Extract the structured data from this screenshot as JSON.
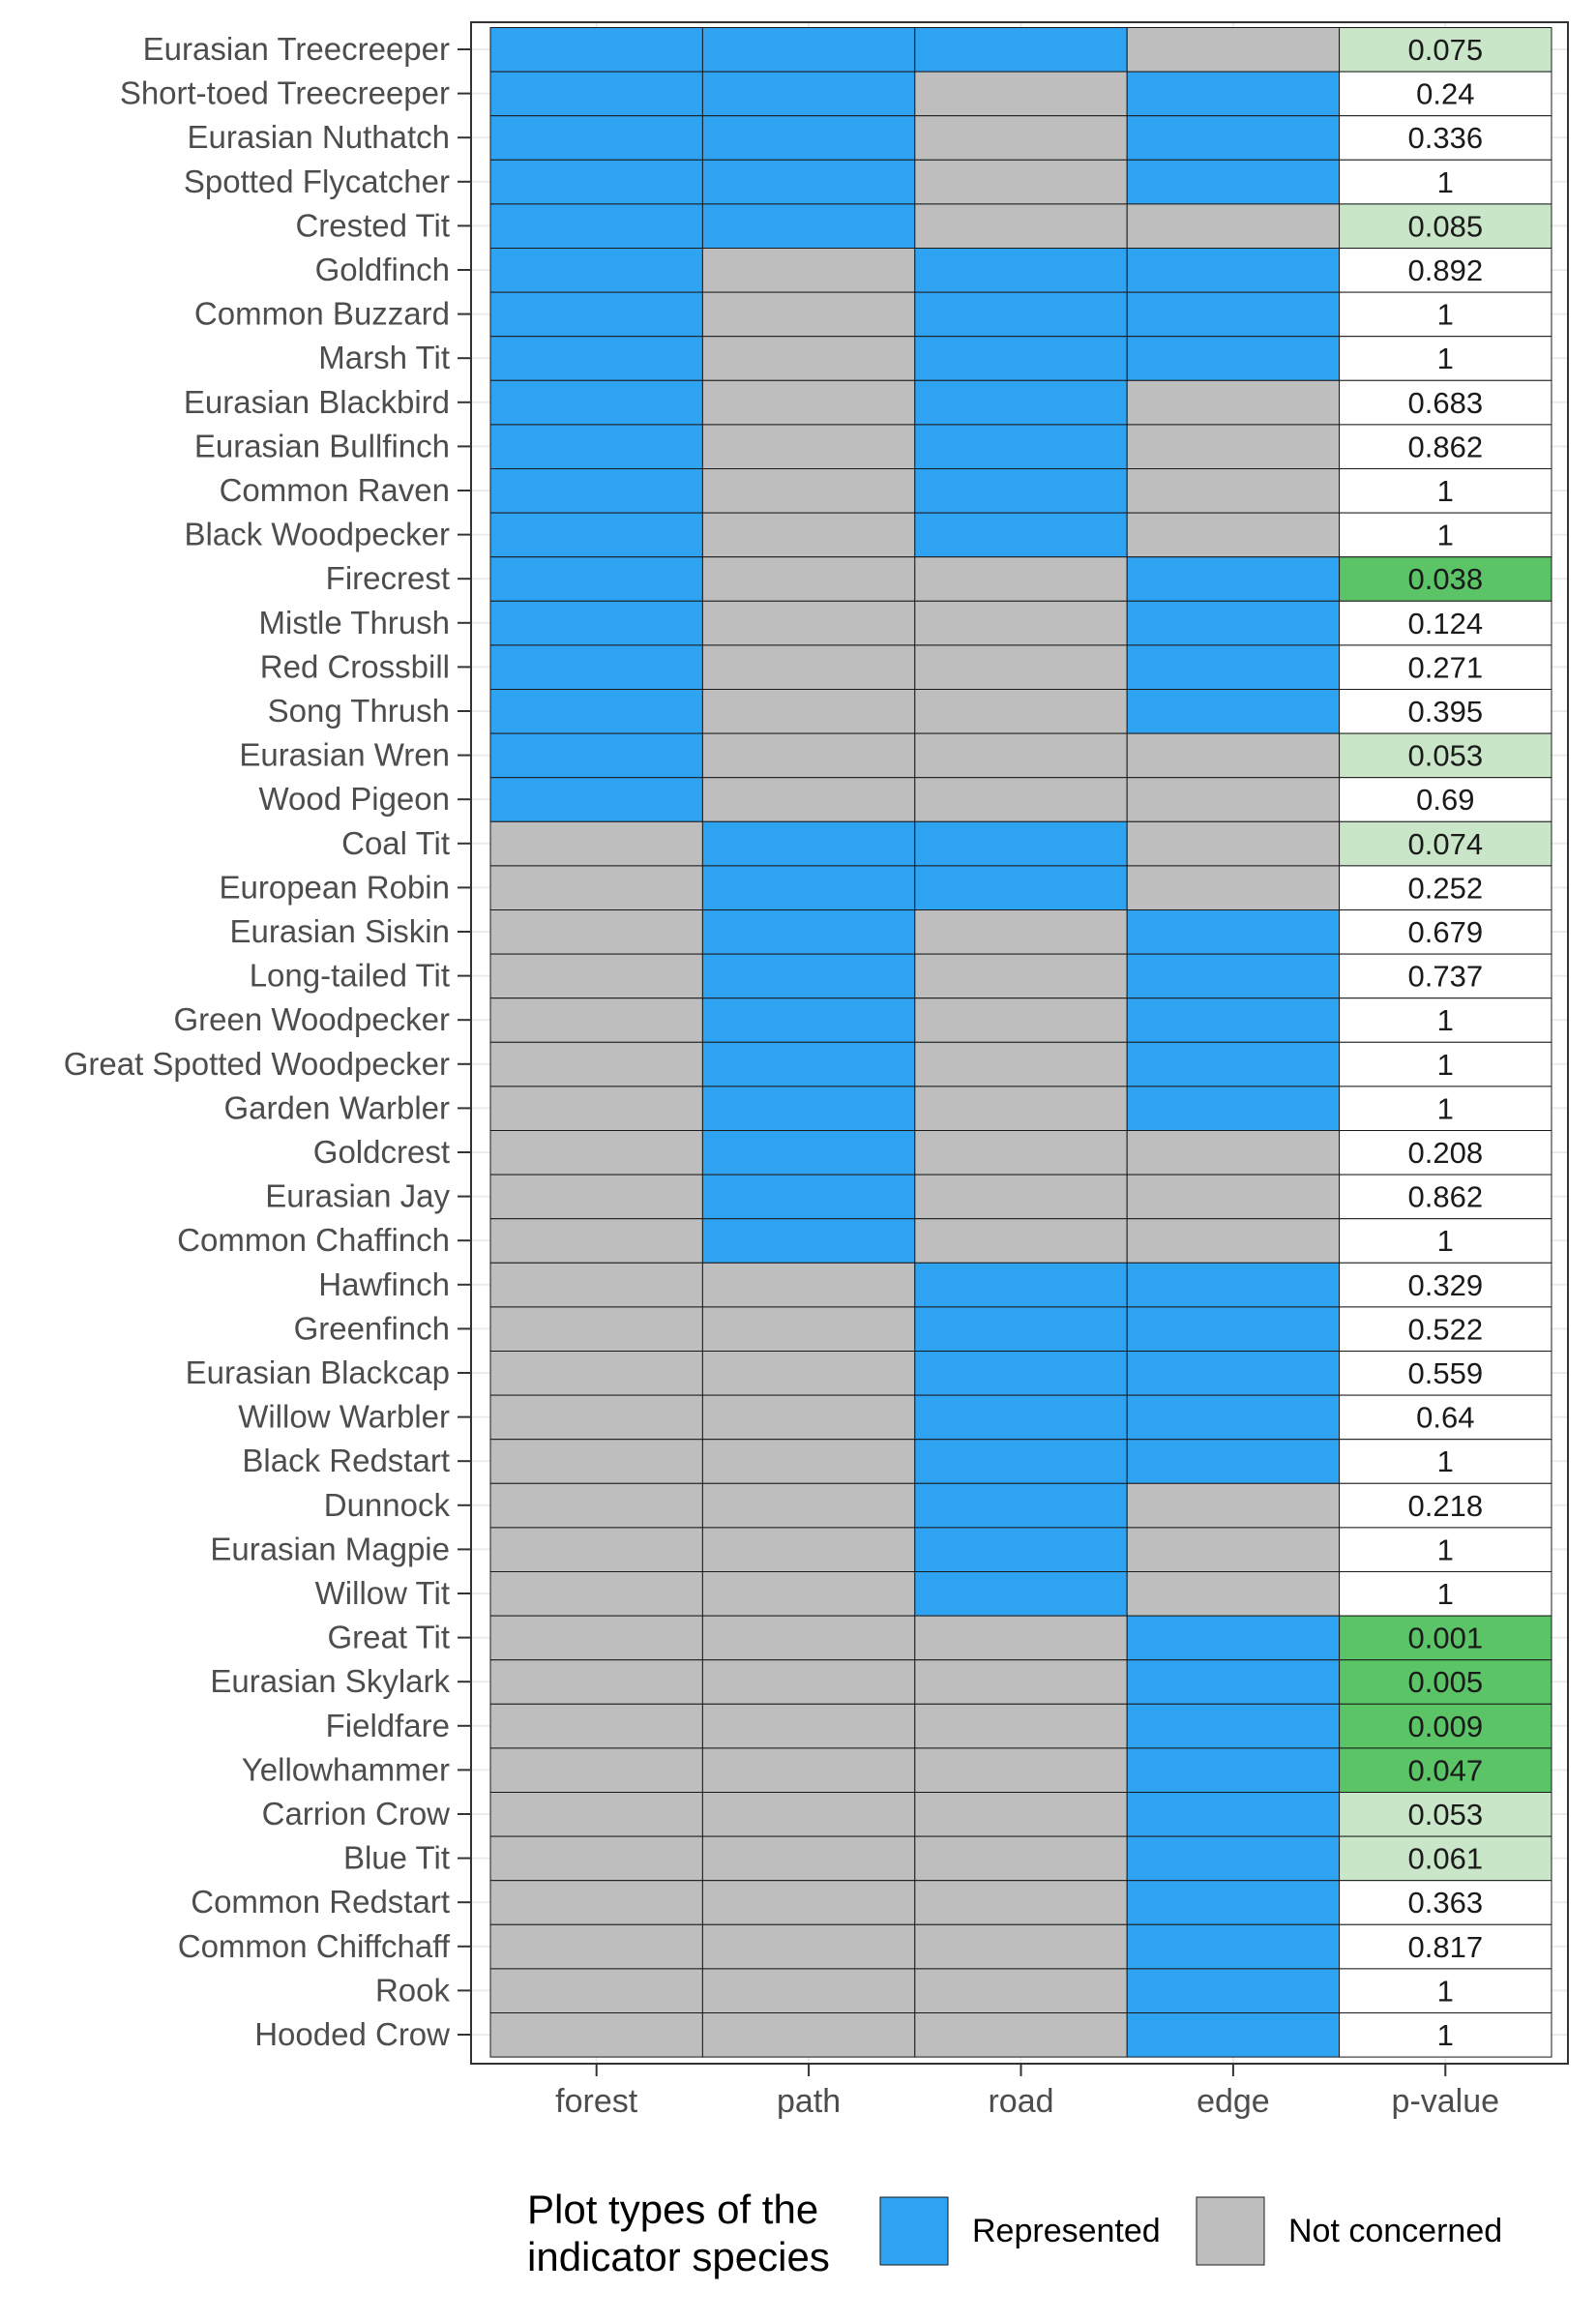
{
  "colors": {
    "represented": "#2EA3F2",
    "not_concerned": "#BEBEBE",
    "pvalue_strong": "#5BC466",
    "pvalue_weak": "#C9E6C8",
    "pvalue_none": "#FFFFFF",
    "grid": "#EBEBEB",
    "cell_border": "#1A1A1A",
    "label_text": "#4D4D4D"
  },
  "chart_data": {
    "type": "heatmap",
    "columns": [
      "forest",
      "path",
      "road",
      "edge"
    ],
    "pvalue_column_label": "p-value",
    "legend": {
      "title_line1": "Plot types of the",
      "title_line2": "indicator species",
      "position": "bottom",
      "items": [
        {
          "key": "represented",
          "label": "Represented"
        },
        {
          "key": "not_concerned",
          "label": "Not concerned"
        }
      ]
    },
    "pvalue_highlight": {
      "strong_below": 0.05,
      "weak_below": 0.1
    },
    "rows": [
      {
        "species": "Eurasian Treecreeper",
        "plots": [
          1,
          1,
          1,
          0
        ],
        "p": "0.075"
      },
      {
        "species": "Short-toed Treecreeper",
        "plots": [
          1,
          1,
          0,
          1
        ],
        "p": "0.24"
      },
      {
        "species": "Eurasian Nuthatch",
        "plots": [
          1,
          1,
          0,
          1
        ],
        "p": "0.336"
      },
      {
        "species": "Spotted Flycatcher",
        "plots": [
          1,
          1,
          0,
          1
        ],
        "p": "1"
      },
      {
        "species": "Crested Tit",
        "plots": [
          1,
          1,
          0,
          0
        ],
        "p": "0.085"
      },
      {
        "species": "Goldfinch",
        "plots": [
          1,
          0,
          1,
          1
        ],
        "p": "0.892"
      },
      {
        "species": "Common Buzzard",
        "plots": [
          1,
          0,
          1,
          1
        ],
        "p": "1"
      },
      {
        "species": "Marsh Tit",
        "plots": [
          1,
          0,
          1,
          1
        ],
        "p": "1"
      },
      {
        "species": "Eurasian Blackbird",
        "plots": [
          1,
          0,
          1,
          0
        ],
        "p": "0.683"
      },
      {
        "species": "Eurasian Bullfinch",
        "plots": [
          1,
          0,
          1,
          0
        ],
        "p": "0.862"
      },
      {
        "species": "Common Raven",
        "plots": [
          1,
          0,
          1,
          0
        ],
        "p": "1"
      },
      {
        "species": "Black Woodpecker",
        "plots": [
          1,
          0,
          1,
          0
        ],
        "p": "1"
      },
      {
        "species": "Firecrest",
        "plots": [
          1,
          0,
          0,
          1
        ],
        "p": "0.038"
      },
      {
        "species": "Mistle Thrush",
        "plots": [
          1,
          0,
          0,
          1
        ],
        "p": "0.124"
      },
      {
        "species": "Red Crossbill",
        "plots": [
          1,
          0,
          0,
          1
        ],
        "p": "0.271"
      },
      {
        "species": "Song Thrush",
        "plots": [
          1,
          0,
          0,
          1
        ],
        "p": "0.395"
      },
      {
        "species": "Eurasian Wren",
        "plots": [
          1,
          0,
          0,
          0
        ],
        "p": "0.053"
      },
      {
        "species": "Wood Pigeon",
        "plots": [
          1,
          0,
          0,
          0
        ],
        "p": "0.69"
      },
      {
        "species": "Coal Tit",
        "plots": [
          0,
          1,
          1,
          0
        ],
        "p": "0.074"
      },
      {
        "species": "European Robin",
        "plots": [
          0,
          1,
          1,
          0
        ],
        "p": "0.252"
      },
      {
        "species": "Eurasian Siskin",
        "plots": [
          0,
          1,
          0,
          1
        ],
        "p": "0.679"
      },
      {
        "species": "Long-tailed Tit",
        "plots": [
          0,
          1,
          0,
          1
        ],
        "p": "0.737"
      },
      {
        "species": "Green Woodpecker",
        "plots": [
          0,
          1,
          0,
          1
        ],
        "p": "1"
      },
      {
        "species": "Great Spotted Woodpecker",
        "plots": [
          0,
          1,
          0,
          1
        ],
        "p": "1"
      },
      {
        "species": "Garden Warbler",
        "plots": [
          0,
          1,
          0,
          1
        ],
        "p": "1"
      },
      {
        "species": "Goldcrest",
        "plots": [
          0,
          1,
          0,
          0
        ],
        "p": "0.208"
      },
      {
        "species": "Eurasian Jay",
        "plots": [
          0,
          1,
          0,
          0
        ],
        "p": "0.862"
      },
      {
        "species": "Common Chaffinch",
        "plots": [
          0,
          1,
          0,
          0
        ],
        "p": "1"
      },
      {
        "species": "Hawfinch",
        "plots": [
          0,
          0,
          1,
          1
        ],
        "p": "0.329"
      },
      {
        "species": "Greenfinch",
        "plots": [
          0,
          0,
          1,
          1
        ],
        "p": "0.522"
      },
      {
        "species": "Eurasian Blackcap",
        "plots": [
          0,
          0,
          1,
          1
        ],
        "p": "0.559"
      },
      {
        "species": "Willow Warbler",
        "plots": [
          0,
          0,
          1,
          1
        ],
        "p": "0.64"
      },
      {
        "species": "Black Redstart",
        "plots": [
          0,
          0,
          1,
          1
        ],
        "p": "1"
      },
      {
        "species": "Dunnock",
        "plots": [
          0,
          0,
          1,
          0
        ],
        "p": "0.218"
      },
      {
        "species": "Eurasian Magpie",
        "plots": [
          0,
          0,
          1,
          0
        ],
        "p": "1"
      },
      {
        "species": "Willow Tit",
        "plots": [
          0,
          0,
          1,
          0
        ],
        "p": "1"
      },
      {
        "species": "Great Tit",
        "plots": [
          0,
          0,
          0,
          1
        ],
        "p": "0.001"
      },
      {
        "species": "Eurasian Skylark",
        "plots": [
          0,
          0,
          0,
          1
        ],
        "p": "0.005"
      },
      {
        "species": "Fieldfare",
        "plots": [
          0,
          0,
          0,
          1
        ],
        "p": "0.009"
      },
      {
        "species": "Yellowhammer",
        "plots": [
          0,
          0,
          0,
          1
        ],
        "p": "0.047"
      },
      {
        "species": "Carrion Crow",
        "plots": [
          0,
          0,
          0,
          1
        ],
        "p": "0.053"
      },
      {
        "species": "Blue Tit",
        "plots": [
          0,
          0,
          0,
          1
        ],
        "p": "0.061"
      },
      {
        "species": "Common Redstart",
        "plots": [
          0,
          0,
          0,
          1
        ],
        "p": "0.363"
      },
      {
        "species": "Common Chiffchaff",
        "plots": [
          0,
          0,
          0,
          1
        ],
        "p": "0.817"
      },
      {
        "species": "Rook",
        "plots": [
          0,
          0,
          0,
          1
        ],
        "p": "1"
      },
      {
        "species": "Hooded Crow",
        "plots": [
          0,
          0,
          0,
          1
        ],
        "p": "1"
      }
    ]
  }
}
